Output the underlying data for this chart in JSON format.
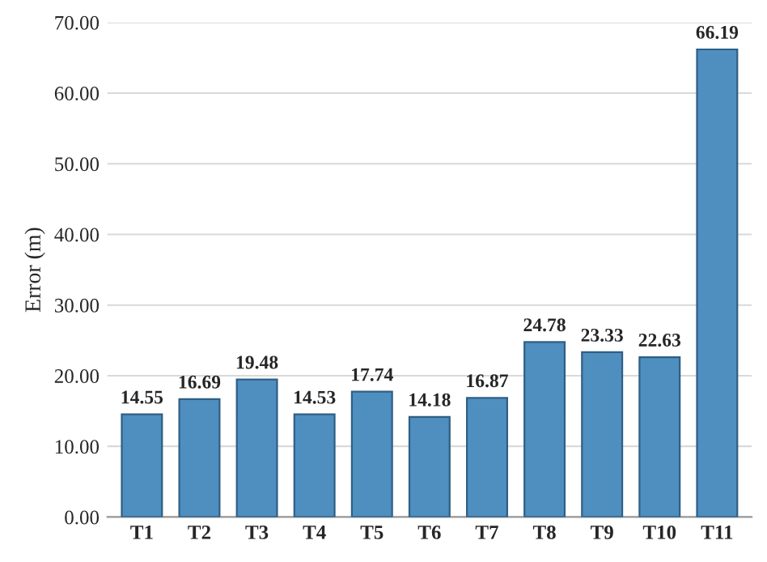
{
  "chart_data": {
    "type": "bar",
    "ylabel": "Error (m)",
    "categories": [
      "T1",
      "T2",
      "T3",
      "T4",
      "T5",
      "T6",
      "T7",
      "T8",
      "T9",
      "T10",
      "T11"
    ],
    "values": [
      14.55,
      16.69,
      19.48,
      14.53,
      17.74,
      14.18,
      16.87,
      24.78,
      23.33,
      22.63,
      66.19
    ],
    "color": "#4f8fc0",
    "ylim": [
      0,
      70
    ],
    "yticks": [
      {
        "value": 0,
        "label": "0.00"
      },
      {
        "value": 10,
        "label": "10.00"
      },
      {
        "value": 20,
        "label": "20.00"
      },
      {
        "value": 30,
        "label": "30.00"
      },
      {
        "value": 40,
        "label": "40.00"
      },
      {
        "value": 50,
        "label": "50.00"
      },
      {
        "value": 60,
        "label": "60.00"
      },
      {
        "value": 70,
        "label": "70.00"
      }
    ],
    "grid": "y",
    "data_labels": true
  }
}
